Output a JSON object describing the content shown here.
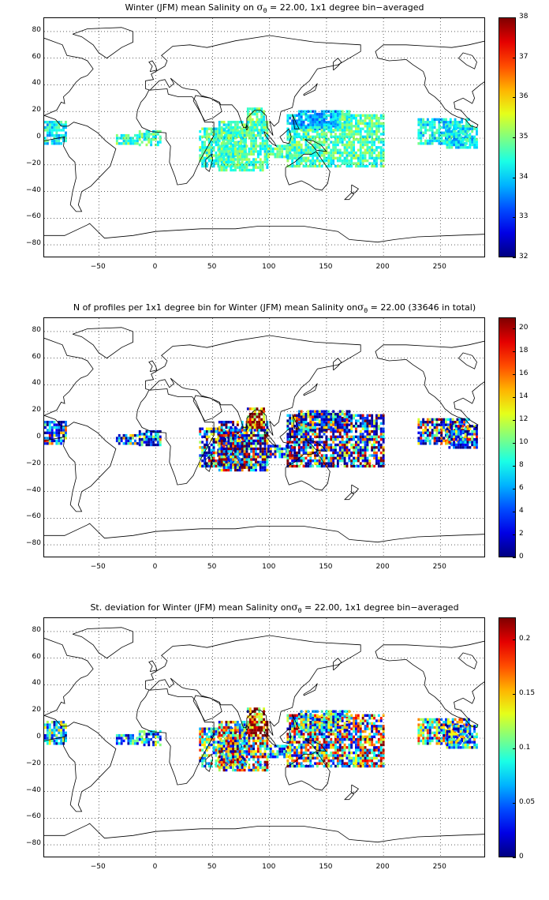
{
  "panels": [
    {
      "title_pre": "Winter (JFM) mean Salinity on ",
      "title_sigma": "σ",
      "title_sub": "θ",
      "title_post": " = 22.00, 1x1 degree bin−averaged",
      "colorbar": {
        "ticks": [
          "38",
          "37",
          "36",
          "35",
          "34",
          "33",
          "32"
        ],
        "min": 32,
        "max": 38
      },
      "colormap": "jet",
      "field": "salinity"
    },
    {
      "title_pre": "N of profiles per 1x1 degree bin for Winter (JFM) mean Salinity on",
      "title_sigma": "σ",
      "title_sub": "θ",
      "title_post": " = 22.00 (33646 in total)",
      "colorbar": {
        "ticks": [
          "20",
          "18",
          "16",
          "14",
          "12",
          "10",
          "8",
          "6",
          "4",
          "2",
          "0"
        ],
        "min": 0,
        "max": 21
      },
      "colormap": "jet",
      "field": "count"
    },
    {
      "title_pre": "St. deviation for Winter (JFM) mean Salinity on",
      "title_sigma": "σ",
      "title_sub": "θ",
      "title_post": " = 22.00, 1x1 degree bin−averaged",
      "colorbar": {
        "ticks": [
          "0.2",
          "0.15",
          "0.1",
          "0.05",
          "0"
        ],
        "min": 0,
        "max": 0.22
      },
      "colormap": "jet",
      "field": "stdev"
    }
  ],
  "axes": {
    "yticks": [
      "80",
      "60",
      "40",
      "20",
      "0",
      "−20",
      "−40",
      "−60",
      "−80"
    ],
    "xticks": [
      "−50",
      "0",
      "50",
      "100",
      "150",
      "200",
      "250"
    ],
    "xlim": [
      -98,
      290
    ],
    "ylim": [
      -90,
      90
    ]
  },
  "colors": {
    "coast": "#000000",
    "grid": "#000000",
    "background": "#ffffff"
  }
}
